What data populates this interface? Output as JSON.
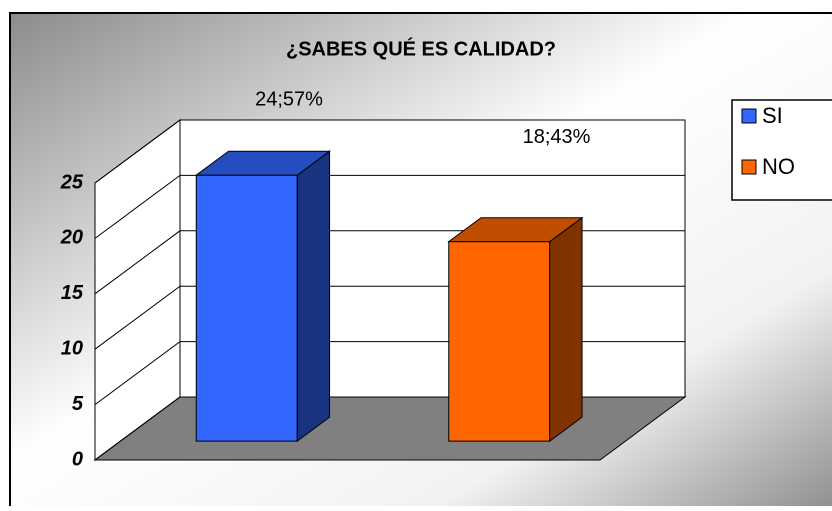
{
  "chart_data": {
    "type": "bar3d",
    "title": "¿SABES QUÉ ES CALIDAD?",
    "series": [
      {
        "name": "SI",
        "color": "#3366ff",
        "values": [
          24
        ],
        "value_labels": [
          "24;57%"
        ]
      },
      {
        "name": "NO",
        "color": "#ff6600",
        "values": [
          18
        ],
        "value_labels": [
          "18;43%"
        ]
      }
    ],
    "ylim": [
      0,
      25
    ],
    "yticks": [
      0,
      5,
      10,
      15,
      20,
      25
    ],
    "grid": true,
    "legend": "right"
  }
}
